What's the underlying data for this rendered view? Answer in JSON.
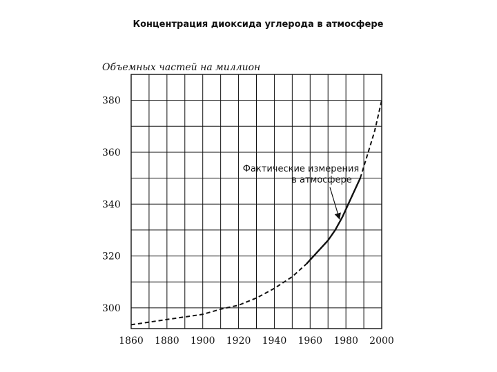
{
  "chart_data": {
    "type": "line",
    "title": "Концентрация диоксида углерода в атмосфере",
    "ylabel": "Объемных частей на миллион",
    "xlabel": "",
    "xlim": [
      1860,
      2000
    ],
    "ylim": [
      292,
      390
    ],
    "x_ticks": [
      1860,
      1880,
      1900,
      1920,
      1940,
      1960,
      1980,
      2000
    ],
    "y_ticks": [
      300,
      320,
      340,
      360,
      380
    ],
    "grid": true,
    "series": [
      {
        "style": "dashed",
        "x": [
          1860,
          1880,
          1900,
          1910,
          1920,
          1930,
          1940,
          1950,
          1958
        ],
        "y": [
          293.5,
          295.5,
          297.5,
          299.5,
          301,
          303.8,
          307.5,
          312,
          317
        ]
      },
      {
        "name": "Фактические измерения в атмосфере",
        "style": "solid",
        "x": [
          1958,
          1962,
          1966,
          1970,
          1974,
          1978,
          1982,
          1986,
          1988
        ],
        "y": [
          317,
          320,
          323,
          326,
          330,
          335,
          341,
          347,
          350
        ]
      },
      {
        "style": "dashed",
        "x": [
          1988,
          1992,
          1996,
          2000
        ],
        "y": [
          350,
          359,
          368,
          380
        ]
      }
    ],
    "annotations": [
      {
        "text_lines": [
          "Фактические измерения",
          "в атмосфере"
        ],
        "points_to": [
          1977,
          333
        ]
      }
    ]
  }
}
